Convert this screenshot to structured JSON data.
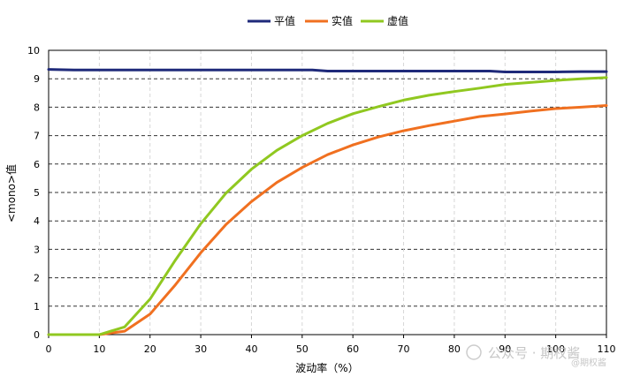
{
  "chart_data": {
    "type": "line",
    "xlabel": "波动率（%）",
    "ylabel": "<mono>值",
    "xlim": [
      0,
      110
    ],
    "ylim": [
      0,
      10
    ],
    "xticks": [
      "0",
      "10",
      "20",
      "30",
      "40",
      "50",
      "60",
      "70",
      "80",
      "90",
      "100",
      "110"
    ],
    "yticks": [
      "0",
      "1",
      "2",
      "3",
      "4",
      "5",
      "6",
      "7",
      "8",
      "9",
      "10"
    ],
    "legend_position": "top-center",
    "grid": {
      "horizontal": "dashed",
      "vertical": "dashed-light"
    },
    "series": [
      {
        "name": "平值",
        "color": "#1f2a7a",
        "x": [
          0,
          5,
          10,
          15,
          20,
          25,
          30,
          35,
          40,
          45,
          50,
          52,
          55,
          60,
          70,
          80,
          87,
          90,
          95,
          100,
          105,
          110
        ],
        "y": [
          9.33,
          9.31,
          9.31,
          9.31,
          9.31,
          9.31,
          9.31,
          9.31,
          9.31,
          9.31,
          9.31,
          9.31,
          9.27,
          9.27,
          9.27,
          9.27,
          9.27,
          9.24,
          9.24,
          9.24,
          9.25,
          9.25
        ]
      },
      {
        "name": "实值",
        "color": "#f07020",
        "x": [
          0,
          5,
          10,
          15,
          20,
          25,
          30,
          35,
          40,
          45,
          50,
          55,
          60,
          65,
          70,
          75,
          80,
          85,
          90,
          95,
          100,
          105,
          110
        ],
        "y": [
          0,
          0,
          0,
          0.12,
          0.72,
          1.75,
          2.88,
          3.88,
          4.68,
          5.35,
          5.88,
          6.33,
          6.67,
          6.95,
          7.17,
          7.35,
          7.51,
          7.67,
          7.76,
          7.86,
          7.95,
          8.0,
          8.06
        ]
      },
      {
        "name": "虚值",
        "color": "#90c820",
        "x": [
          0,
          5,
          10,
          15,
          20,
          25,
          30,
          35,
          40,
          45,
          50,
          55,
          60,
          65,
          70,
          75,
          80,
          85,
          90,
          95,
          100,
          105,
          110
        ],
        "y": [
          0,
          0,
          0,
          0.27,
          1.25,
          2.62,
          3.9,
          4.98,
          5.82,
          6.48,
          7.0,
          7.43,
          7.77,
          8.02,
          8.25,
          8.42,
          8.55,
          8.67,
          8.8,
          8.87,
          8.94,
          9.0,
          9.04
        ]
      }
    ]
  },
  "watermark": {
    "line1": "公众号 · 期权酱",
    "line2": "@期权酱"
  }
}
